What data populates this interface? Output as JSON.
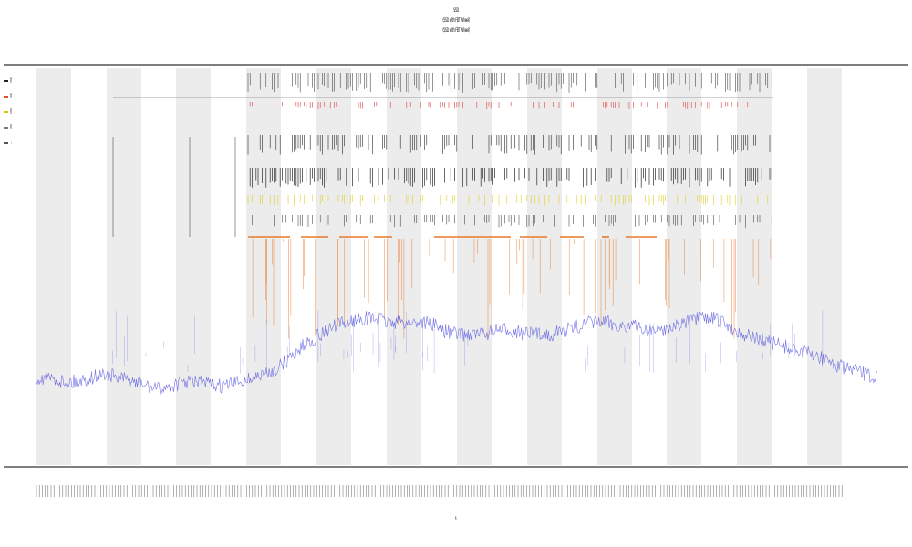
{
  "title": {
    "line1": "SSD",
    "line2": "(SSD with FBT Wheel)",
    "line3": "(SSD with FBT Wheel)"
  },
  "legend": [
    {
      "label": "SSD",
      "color": "#222222"
    },
    {
      "label": "SSD",
      "color": "#e05030"
    },
    {
      "label": "SSD",
      "color": "#d8c400"
    },
    {
      "label": "SSD",
      "color": "#7a7a7a"
    },
    {
      "label": "—",
      "color": "#555555"
    }
  ],
  "colors": {
    "baseline": "#5a5ae0",
    "activity": "#e8792a",
    "event_dark": "#2a2a2a",
    "event_red": "#e04040",
    "event_yellow": "#e0d020",
    "band": "#ececec"
  },
  "chart_data": {
    "type": "line",
    "x_label": "t",
    "y_range": [
      0,
      1
    ],
    "grid": false,
    "legend_position": "left",
    "series": [
      {
        "name": "SSD",
        "values": [
          0.22,
          0.22,
          0.21,
          0.21,
          0.22,
          0.23,
          0.22,
          0.21,
          0.2,
          0.19,
          0.2,
          0.21,
          0.21,
          0.2,
          0.2,
          0.21,
          0.22,
          0.23,
          0.25,
          0.28,
          0.31,
          0.33,
          0.35,
          0.36,
          0.37,
          0.37,
          0.36,
          0.36,
          0.36,
          0.36,
          0.34,
          0.33,
          0.33,
          0.33,
          0.34,
          0.34,
          0.33,
          0.33,
          0.33,
          0.34,
          0.35,
          0.36,
          0.36,
          0.35,
          0.35,
          0.34,
          0.34,
          0.35,
          0.36,
          0.37,
          0.37,
          0.35,
          0.33,
          0.32,
          0.31,
          0.3,
          0.29,
          0.28,
          0.27,
          0.25,
          0.24,
          0.23,
          0.22
        ]
      },
      {
        "name": "SSD",
        "values": [
          0,
          0,
          0,
          0,
          0,
          0,
          0,
          0,
          0,
          0,
          0,
          0,
          0,
          0,
          0,
          0,
          0,
          0,
          0,
          0.3,
          0.36,
          0.4,
          0.38,
          0.39,
          0.4,
          0.41,
          0.37,
          0.38,
          0.39,
          0.4,
          0.38,
          0.37,
          0.39,
          0.4,
          0.41,
          0.39,
          0.38,
          0.4,
          0.41,
          0.42,
          0.4,
          0.38,
          0.39,
          0.42,
          0.43,
          0.41,
          0.4,
          0.36,
          0.35,
          0.34,
          0.33,
          0.32,
          0.3,
          0,
          0,
          0,
          0,
          0,
          0,
          0,
          0,
          0,
          0
        ]
      }
    ]
  }
}
